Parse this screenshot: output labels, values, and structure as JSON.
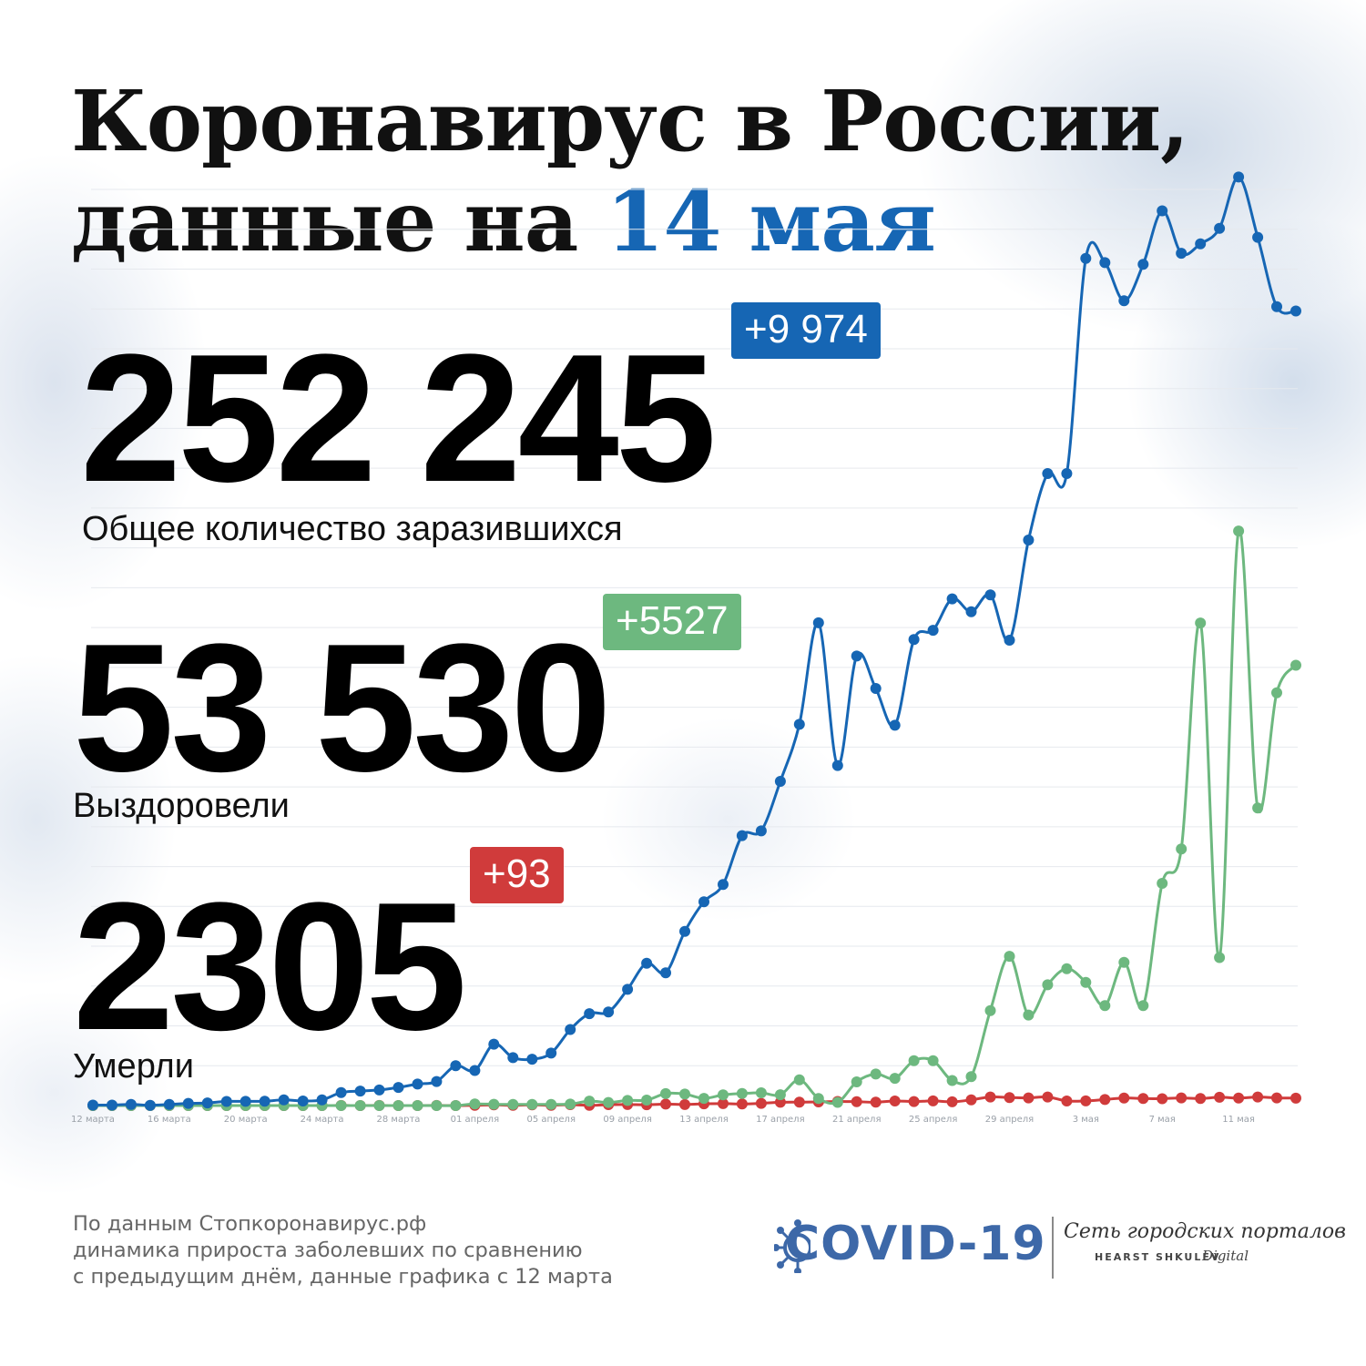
{
  "header": {
    "title_line1": "Коронавирус в России,",
    "title_line2_prefix": "данные на ",
    "title_line2_date": "14 мая"
  },
  "stats": {
    "infected": {
      "value": "252 245",
      "delta": "+9 974",
      "label": "Общее количество заразившихся"
    },
    "recovered": {
      "value": "53 530",
      "delta": "+5527",
      "label": "Выздоровели"
    },
    "deaths": {
      "value": "2305",
      "delta": "+93",
      "label": "Умерли"
    }
  },
  "colors": {
    "infected": "#1666b4",
    "recovered": "#6db87f",
    "deaths": "#d03b3b",
    "title_accent": "#1666b4"
  },
  "footer": {
    "line1": "По данным Стопкоронавирус.рф",
    "line2": "динамика прироста заболевших по сравнению",
    "line3": "с предыдущим днём, данные графика с 12 марта"
  },
  "logo": {
    "main": "COVID-19",
    "network": "Сеть городских порталов",
    "brand": "HEARST SHKULEV",
    "digital": "Digital",
    "icon": "virus-icon"
  },
  "chart_data": {
    "type": "line",
    "title": "",
    "xlabel": "",
    "ylabel": "",
    "ylim": [
      0,
      11500
    ],
    "grid": true,
    "x_tick_labels": [
      "12 марта",
      "16 марта",
      "20 марта",
      "24 марта",
      "28 марта",
      "01 апреля",
      "05 апреля",
      "09 апреля",
      "13 апреля",
      "17 апреля",
      "21 апреля",
      "25 апреля",
      "29 апреля",
      "3 мая",
      "7 мая",
      "11 мая"
    ],
    "x": [
      "12 марта",
      "13 марта",
      "14 марта",
      "15 марта",
      "16 марта",
      "17 марта",
      "18 марта",
      "19 марта",
      "20 марта",
      "21 марта",
      "22 марта",
      "23 марта",
      "24 марта",
      "25 марта",
      "26 марта",
      "27 марта",
      "28 марта",
      "29 марта",
      "30 марта",
      "31 марта",
      "01 апреля",
      "02 апреля",
      "03 апреля",
      "04 апреля",
      "05 апреля",
      "06 апреля",
      "07 апреля",
      "08 апреля",
      "09 апреля",
      "10 апреля",
      "11 апреля",
      "12 апреля",
      "13 апреля",
      "14 апреля",
      "15 апреля",
      "16 апреля",
      "17 апреля",
      "18 апреля",
      "19 апреля",
      "20 апреля",
      "21 апреля",
      "22 апреля",
      "23 апреля",
      "24 апреля",
      "25 апреля",
      "26 апреля",
      "27 апреля",
      "28 апреля",
      "29 апреля",
      "30 апреля",
      "1 мая",
      "2 мая",
      "3 мая",
      "4 мая",
      "5 мая",
      "6 мая",
      "7 мая",
      "8 мая",
      "9 мая",
      "10 мая",
      "11 мая",
      "12 мая",
      "13 мая",
      "14 мая"
    ],
    "series": [
      {
        "name": "Общее количество заразившихся",
        "color": "#1666b4",
        "values": [
          6,
          6,
          14,
          4,
          14,
          27,
          33,
          52,
          53,
          54,
          71,
          57,
          71,
          163,
          182,
          196,
          228,
          270,
          302,
          500,
          440,
          771,
          601,
          582,
          658,
          954,
          1154,
          1175,
          1459,
          1786,
          1667,
          2186,
          2558,
          2774,
          3388,
          3448,
          4070,
          4785,
          6060,
          4268,
          5642,
          5236,
          4774,
          5849,
          5966,
          6361,
          6198,
          6411,
          5841,
          7099,
          7933,
          7933,
          10633,
          10581,
          10102,
          10559,
          11231,
          10699,
          10817,
          11012,
          11656,
          10899,
          10028,
          9974
        ]
      },
      {
        "name": "Выздоровели",
        "color": "#6db87f",
        "values": [
          0,
          0,
          0,
          0,
          0,
          0,
          0,
          0,
          0,
          0,
          0,
          0,
          0,
          0,
          0,
          0,
          0,
          0,
          0,
          0,
          19,
          16,
          14,
          15,
          15,
          18,
          56,
          39,
          64,
          69,
          150,
          144,
          90,
          134,
          151,
          160,
          136,
          323,
          89,
          40,
          297,
          396,
          342,
          563,
          564,
          314,
          364,
          1192,
          1874,
          1136,
          1516,
          1718,
          1546,
          1255,
          1798,
          1254,
          2789,
          3221,
          6057,
          1858,
          7212,
          3735,
          5182,
          5527
        ]
      },
      {
        "name": "Умерли",
        "color": "#d03b3b",
        "values": [
          0,
          0,
          0,
          0,
          0,
          0,
          0,
          0,
          0,
          0,
          0,
          0,
          0,
          1,
          0,
          1,
          0,
          0,
          1,
          0,
          2,
          8,
          3,
          9,
          4,
          11,
          2,
          11,
          13,
          10,
          18,
          13,
          22,
          24,
          20,
          28,
          41,
          43,
          46,
          51,
          48,
          42,
          57,
          50,
          58,
          47,
          72,
          108,
          101,
          96,
          108,
          57,
          58,
          76,
          95,
          88,
          86,
          96,
          88,
          104,
          94,
          107,
          96,
          93
        ]
      }
    ]
  }
}
